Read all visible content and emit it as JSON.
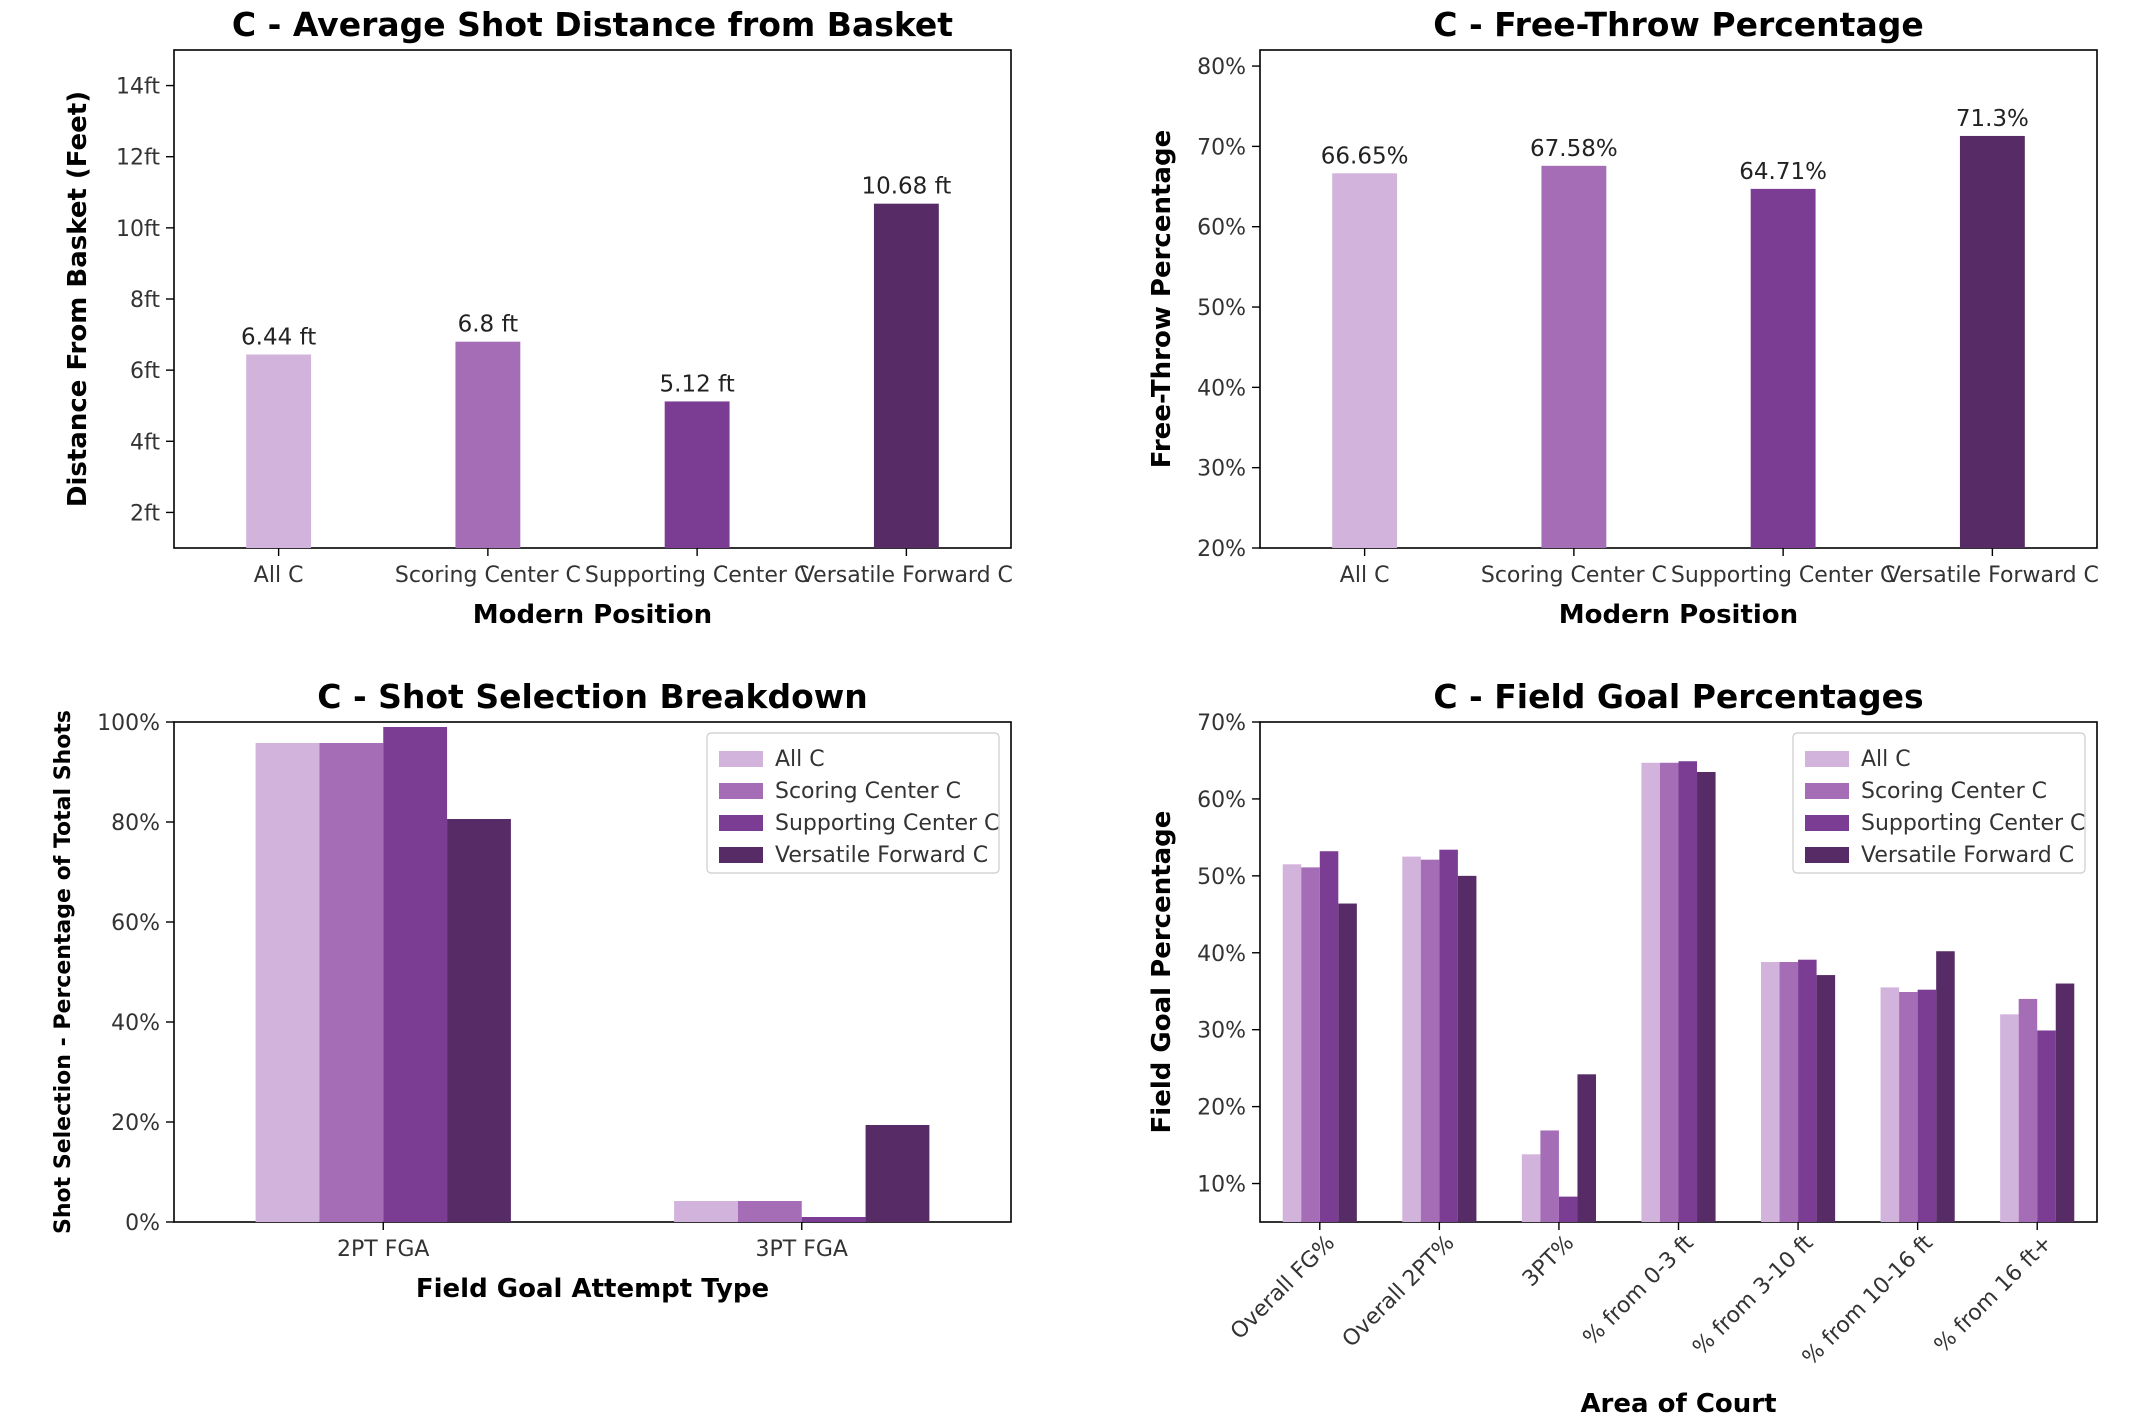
{
  "colors": {
    "All C": "#d2b3dc",
    "Scoring Center C": "#a46db6",
    "Supporting Center C": "#7a3d93",
    "Versatile Forward C": "#562b66"
  },
  "chart_data": [
    {
      "type": "bar",
      "title": "C - Average Shot Distance from Basket",
      "xlabel": "Modern Position",
      "ylabel": "Distance From Basket (Feet)",
      "categories": [
        "All C",
        "Scoring Center C",
        "Supporting Center C",
        "Versatile Forward C"
      ],
      "values": [
        6.44,
        6.8,
        5.12,
        10.68
      ],
      "data_labels": [
        "6.44 ft",
        "6.8 ft",
        "5.12 ft",
        "10.68 ft"
      ],
      "ylim": [
        1,
        15
      ],
      "yticks": [
        2,
        4,
        6,
        8,
        10,
        12,
        14
      ],
      "ytick_labels": [
        "2ft",
        "4ft",
        "6ft",
        "8ft",
        "10ft",
        "12ft",
        "14ft"
      ],
      "grid": false
    },
    {
      "type": "bar",
      "title": "C - Free-Throw Percentage",
      "xlabel": "Modern Position",
      "ylabel": "Free-Throw Percentage",
      "categories": [
        "All C",
        "Scoring Center C",
        "Supporting Center C",
        "Versatile Forward C"
      ],
      "values": [
        66.65,
        67.58,
        64.71,
        71.3
      ],
      "data_labels": [
        "66.65%",
        "67.58%",
        "64.71%",
        "71.3%"
      ],
      "ylim": [
        20,
        82
      ],
      "yticks": [
        20,
        30,
        40,
        50,
        60,
        70,
        80
      ],
      "ytick_labels": [
        "20%",
        "30%",
        "40%",
        "50%",
        "60%",
        "70%",
        "80%"
      ],
      "grid": false
    },
    {
      "type": "bar",
      "title": "C - Shot Selection Breakdown",
      "xlabel": "Field Goal Attempt Type",
      "ylabel": "Shot Selection - Percentage of Total Shots",
      "categories": [
        "2PT FGA",
        "3PT FGA"
      ],
      "series": [
        {
          "name": "All C",
          "values": [
            95.8,
            4.2
          ]
        },
        {
          "name": "Scoring Center C",
          "values": [
            95.8,
            4.2
          ]
        },
        {
          "name": "Supporting Center C",
          "values": [
            99.0,
            1.0
          ]
        },
        {
          "name": "Versatile Forward C",
          "values": [
            80.6,
            19.4
          ]
        }
      ],
      "ylim": [
        0,
        100
      ],
      "yticks": [
        0,
        20,
        40,
        60,
        80,
        100
      ],
      "ytick_labels": [
        "0%",
        "20%",
        "40%",
        "60%",
        "80%",
        "100%"
      ],
      "legend": "top-right",
      "grid": false
    },
    {
      "type": "bar",
      "title": "C - Field Goal Percentages",
      "xlabel": "Area of Court",
      "ylabel": "Field Goal Percentage",
      "categories": [
        "Overall FG%",
        "Overall 2PT%",
        "3PT%",
        "% from 0-3 ft",
        "% from 3-10 ft",
        "% from 10-16 ft",
        "% from 16 ft+"
      ],
      "series": [
        {
          "name": "All C",
          "values": [
            51.5,
            52.5,
            13.8,
            64.7,
            38.8,
            35.5,
            32.0
          ]
        },
        {
          "name": "Scoring Center C",
          "values": [
            51.1,
            52.1,
            16.9,
            64.7,
            38.8,
            34.9,
            34.0
          ]
        },
        {
          "name": "Supporting Center C",
          "values": [
            53.2,
            53.4,
            8.3,
            64.9,
            39.1,
            35.2,
            29.9
          ]
        },
        {
          "name": "Versatile Forward C",
          "values": [
            46.4,
            50.0,
            24.2,
            63.5,
            37.1,
            40.2,
            36.0
          ]
        }
      ],
      "ylim": [
        5,
        70
      ],
      "yticks": [
        10,
        20,
        30,
        40,
        50,
        60,
        70
      ],
      "ytick_labels": [
        "10%",
        "20%",
        "30%",
        "40%",
        "50%",
        "60%",
        "70%"
      ],
      "legend": "top-right",
      "grid": false
    }
  ]
}
